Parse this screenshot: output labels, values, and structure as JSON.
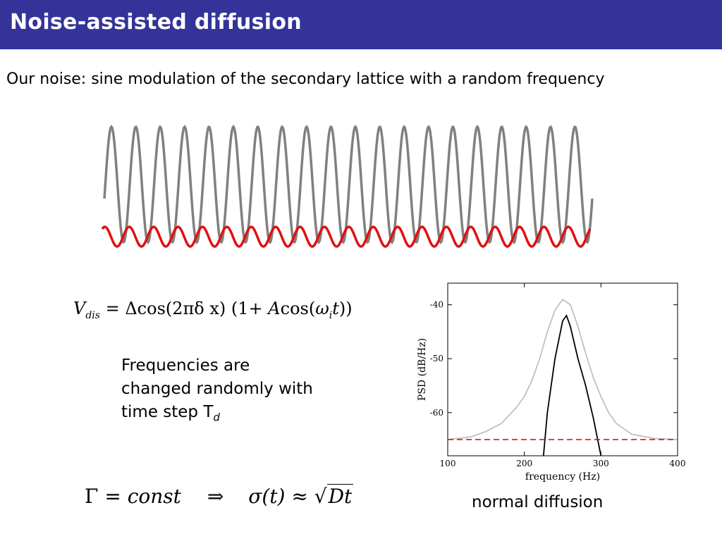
{
  "slide": {
    "title": "Noise-assisted diffusion",
    "subtitle": "Our noise: sine modulation of the secondary lattice with a random frequency"
  },
  "waves": {
    "primary_color": "#808080",
    "secondary_color": "#e01010"
  },
  "formula1": {
    "lhs": "V",
    "lhs_sub": "dis",
    "rhs_a": "= Δcos(2πδ x)  (1+ ",
    "rhs_A": "A",
    "rhs_b": "cos(",
    "omega": "ω",
    "omega_sub": "i",
    "rhs_t": "t",
    "rhs_c": "))"
  },
  "note": {
    "line1": "Frequencies are",
    "line2": "changed randomly with",
    "line3": "time step T",
    "line3_sub": "d"
  },
  "formula2": {
    "gamma": "Γ",
    "eq": "=",
    "const": "const",
    "implies": "⇒",
    "sigma": "σ",
    "paren_t": "(t)",
    "approx": "≈",
    "Dt": "Dt"
  },
  "chart_data": {
    "type": "line",
    "xlabel": "frequency (Hz)",
    "ylabel": "PSD (dB/Hz)",
    "xlim": [
      100,
      400
    ],
    "ylim": [
      -68,
      -36
    ],
    "xticks": [
      100,
      200,
      300,
      400
    ],
    "yticks": [
      -40,
      -50,
      -60
    ],
    "series": [
      {
        "color": "#c0c0c0",
        "x": [
          100,
          130,
          150,
          170,
          190,
          200,
          210,
          220,
          230,
          240,
          250,
          260,
          270,
          280,
          290,
          300,
          310,
          320,
          340,
          370,
          400
        ],
        "y": [
          -65,
          -64.5,
          -63.5,
          -62,
          -59,
          -57,
          -54,
          -50,
          -45,
          -41,
          -39,
          -40,
          -44,
          -49,
          -53.5,
          -57,
          -60,
          -62,
          -64,
          -64.8,
          -65
        ]
      },
      {
        "color": "#000000",
        "x": [
          225,
          230,
          240,
          250,
          255,
          260,
          270,
          280,
          290,
          300
        ],
        "y": [
          -68,
          -60,
          -50,
          -43,
          -42,
          -44,
          -50,
          -55,
          -61,
          -68
        ]
      },
      {
        "color": "#e00000",
        "style": "dashed",
        "x": [
          100,
          400
        ],
        "y": [
          -65,
          -65
        ]
      }
    ]
  },
  "caption": "normal diffusion"
}
